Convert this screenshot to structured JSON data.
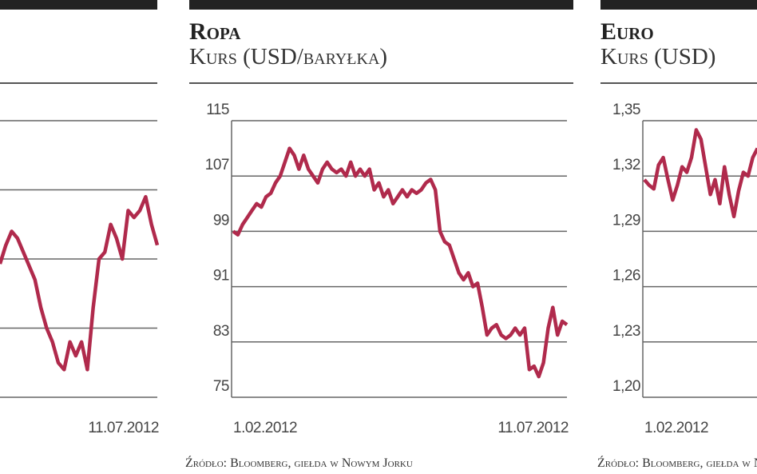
{
  "chart_data": [
    {
      "type": "line",
      "categories": [
        null,
        null,
        null,
        null,
        null,
        null,
        null,
        null,
        null,
        null,
        null,
        null,
        null,
        null,
        null,
        null,
        null,
        null,
        null,
        null,
        null,
        null,
        null,
        null,
        null,
        null,
        null,
        "11.07.2012"
      ],
      "series": [
        {
          "color": "#b02a4c",
          "values": [
            1.93,
            2.2,
            2.4,
            2.3,
            2.1,
            1.9,
            1.7,
            1.3,
            1.0,
            0.8,
            0.5,
            0.4,
            0.8,
            0.6,
            0.8,
            0.4,
            1.3,
            2.0,
            2.1,
            2.5,
            2.3,
            2.0,
            2.7,
            2.6,
            2.7,
            2.9,
            2.5,
            2.2
          ]
        }
      ],
      "ylim": [
        0,
        4
      ]
    },
    {
      "type": "line",
      "title": "Ropa",
      "subtitle": "Kurs (USD/baryłka)",
      "source": "Źródło: Bloomberg, giełda w Nowym Jorku",
      "categories": [
        "1.02.2012",
        null,
        null,
        null,
        null,
        null,
        null,
        null,
        null,
        null,
        null,
        null,
        null,
        null,
        null,
        null,
        null,
        null,
        null,
        null,
        null,
        null,
        null,
        null,
        null,
        null,
        null,
        null,
        null,
        null,
        null,
        null,
        null,
        null,
        null,
        null,
        null,
        null,
        null,
        null,
        null,
        null,
        null,
        null,
        null,
        null,
        null,
        null,
        null,
        null,
        null,
        null,
        null,
        null,
        null,
        null,
        null,
        null,
        null,
        null,
        null,
        null,
        null,
        null,
        null,
        null,
        null,
        null,
        null,
        null,
        null,
        "11.07.2012"
      ],
      "series": [
        {
          "color": "#b02a4c",
          "values": [
            99,
            98.5,
            100,
            101,
            102,
            103,
            102.5,
            104,
            104.5,
            106,
            107,
            109,
            111,
            110,
            108,
            110,
            108,
            107,
            106,
            108,
            109,
            108,
            107.5,
            108,
            107,
            109,
            107,
            108,
            107,
            108,
            105,
            106,
            104,
            105,
            103,
            104,
            105,
            104,
            105,
            104.5,
            105,
            106,
            106.5,
            105,
            99,
            97.5,
            97,
            95,
            93,
            92,
            93,
            91,
            91.5,
            88,
            84,
            85,
            85.5,
            84,
            83.5,
            84,
            85,
            84,
            85,
            79,
            79.5,
            78,
            80,
            85,
            88,
            84,
            86,
            85.5
          ]
        }
      ],
      "ylim": [
        75,
        115
      ],
      "yticks": [
        75,
        83,
        91,
        99,
        107,
        115
      ],
      "grid": true
    },
    {
      "type": "line",
      "title": "Euro",
      "subtitle": "Kurs (USD)",
      "source": "Źródło: Bloomberg, giełda w Nowym Jorku",
      "categories": [
        "1.02.2012",
        null,
        null,
        null,
        null,
        null,
        null,
        null,
        null,
        null,
        null,
        null,
        null,
        null,
        null,
        null,
        null,
        null,
        null,
        null,
        null,
        null,
        null,
        null,
        null
      ],
      "series": [
        {
          "color": "#b02a4c",
          "values": [
            1.318,
            1.315,
            1.313,
            1.326,
            1.33,
            1.318,
            1.307,
            1.315,
            1.325,
            1.322,
            1.33,
            1.345,
            1.34,
            1.325,
            1.31,
            1.318,
            1.305,
            1.325,
            1.31,
            1.298,
            1.312,
            1.322,
            1.32,
            1.33,
            1.335
          ]
        }
      ],
      "ylim": [
        1.2,
        1.35
      ],
      "yticks": [
        {
          "value": 1.2,
          "label": "1,20"
        },
        {
          "value": 1.23,
          "label": "1,23"
        },
        {
          "value": 1.26,
          "label": "1,26"
        },
        {
          "value": 1.29,
          "label": "1,29"
        },
        {
          "value": 1.32,
          "label": "1,32"
        },
        {
          "value": 1.35,
          "label": "1,35"
        }
      ],
      "grid": true
    }
  ]
}
